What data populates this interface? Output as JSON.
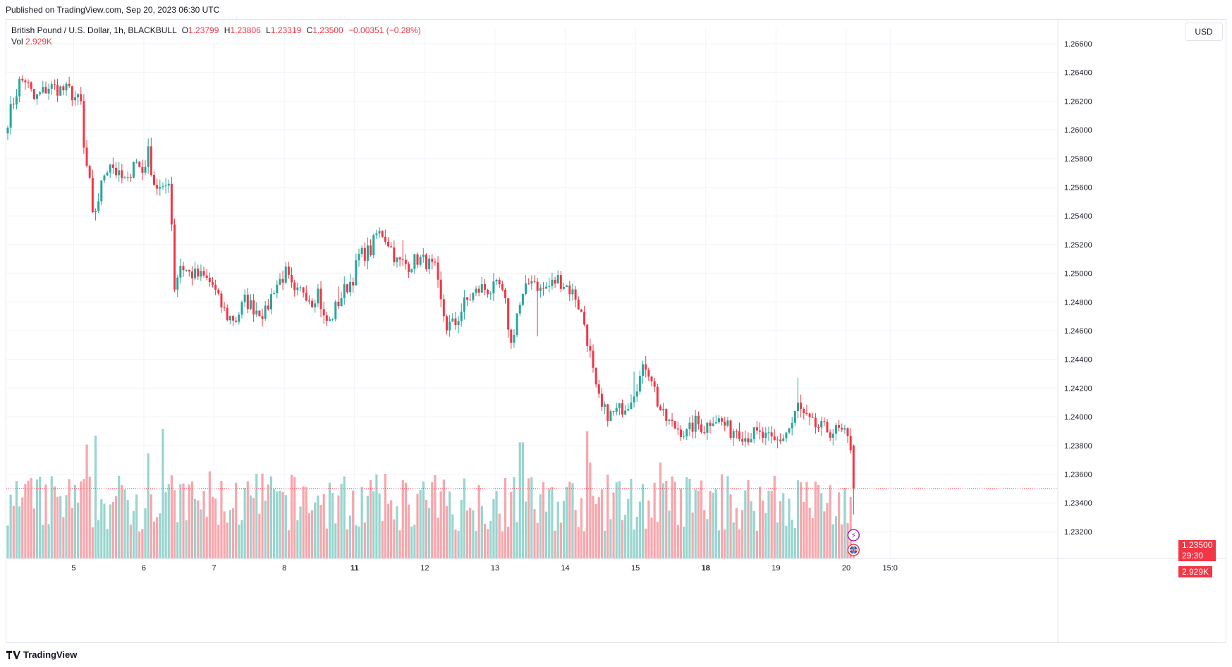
{
  "header": {
    "published": "Published on TradingView.com, Sep 20, 2023 06:30 UTC"
  },
  "legend": {
    "symbol": "British Pound / U.S. Dollar, 1h, BLACKBULL",
    "open_label": "O",
    "open": "1.23799",
    "high_label": "H",
    "high": "1.23806",
    "low_label": "L",
    "low": "1.23319",
    "close_label": "C",
    "close": "1.23500",
    "change": "−0.00351 (−0.28%)",
    "vol_label": "Vol",
    "vol": "2.929K"
  },
  "currency_button": "USD",
  "price_tag": {
    "price": "1.23500",
    "countdown": "29:30",
    "volume": "2.929K"
  },
  "footer": {
    "brand": "TradingView"
  },
  "colors": {
    "up": "#26a69a",
    "down": "#f23645",
    "vol_up": "#98d5cf",
    "vol_down": "#f7a6ac",
    "grid": "#f0f3fa"
  },
  "chart_data": {
    "type": "candlestick",
    "title": "British Pound / U.S. Dollar, 1h, BLACKBULL",
    "ylim": [
      1.2302,
      1.2672
    ],
    "y_ticks": [
      "1.26600",
      "1.26400",
      "1.26200",
      "1.26000",
      "1.25800",
      "1.25600",
      "1.25400",
      "1.25200",
      "1.25000",
      "1.24800",
      "1.24600",
      "1.24400",
      "1.24200",
      "1.24000",
      "1.23800",
      "1.23600",
      "1.23400",
      "1.23200"
    ],
    "x_ticks": [
      {
        "label": "5",
        "bold": false,
        "bar": 22.5
      },
      {
        "label": "6",
        "bold": false,
        "bar": 46.5
      },
      {
        "label": "7",
        "bold": false,
        "bar": 70.5
      },
      {
        "label": "8",
        "bold": false,
        "bar": 94.5
      },
      {
        "label": "11",
        "bold": true,
        "bar": 118.5
      },
      {
        "label": "12",
        "bold": false,
        "bar": 142.5
      },
      {
        "label": "13",
        "bold": false,
        "bar": 166.5
      },
      {
        "label": "14",
        "bold": false,
        "bar": 190.5
      },
      {
        "label": "15",
        "bold": false,
        "bar": 214.5
      },
      {
        "label": "18",
        "bold": true,
        "bar": 238.5
      },
      {
        "label": "19",
        "bold": false,
        "bar": 262.5
      },
      {
        "label": "20",
        "bold": false,
        "bar": 286.5
      },
      {
        "label": "15:0",
        "bold": false,
        "bar": 301.5
      }
    ],
    "anchors": [
      [
        0,
        1.2607
      ],
      [
        4,
        1.2633
      ],
      [
        6,
        1.2635
      ],
      [
        9,
        1.2621
      ],
      [
        14,
        1.263
      ],
      [
        21,
        1.2627
      ],
      [
        25,
        1.2618
      ],
      [
        26,
        1.2586
      ],
      [
        28,
        1.2562
      ],
      [
        29,
        1.2538
      ],
      [
        31,
        1.2552
      ],
      [
        33,
        1.257
      ],
      [
        35,
        1.2578
      ],
      [
        38,
        1.2567
      ],
      [
        41,
        1.2563
      ],
      [
        43,
        1.258
      ],
      [
        46,
        1.2571
      ],
      [
        48,
        1.2584
      ],
      [
        50,
        1.2563
      ],
      [
        53,
        1.2556
      ],
      [
        55,
        1.2566
      ],
      [
        56,
        1.2535
      ],
      [
        57,
        1.2491
      ],
      [
        59,
        1.2506
      ],
      [
        62,
        1.25
      ],
      [
        67,
        1.2497
      ],
      [
        70,
        1.2492
      ],
      [
        72,
        1.2481
      ],
      [
        75,
        1.247
      ],
      [
        78,
        1.2468
      ],
      [
        81,
        1.2481
      ],
      [
        84,
        1.2476
      ],
      [
        88,
        1.2472
      ],
      [
        91,
        1.249
      ],
      [
        95,
        1.25
      ],
      [
        98,
        1.2484
      ],
      [
        101,
        1.2489
      ],
      [
        104,
        1.2481
      ],
      [
        106,
        1.2488
      ],
      [
        108,
        1.2468
      ],
      [
        110,
        1.2466
      ],
      [
        112,
        1.2476
      ],
      [
        115,
        1.2488
      ],
      [
        118,
        1.2497
      ],
      [
        120,
        1.2512
      ],
      [
        124,
        1.2516
      ],
      [
        126,
        1.2527
      ],
      [
        128,
        1.2528
      ],
      [
        130,
        1.2522
      ],
      [
        133,
        1.2508
      ],
      [
        137,
        1.2506
      ],
      [
        140,
        1.251
      ],
      [
        143,
        1.2508
      ],
      [
        146,
        1.2502
      ],
      [
        148,
        1.2479
      ],
      [
        150,
        1.2463
      ],
      [
        153,
        1.2465
      ],
      [
        156,
        1.2479
      ],
      [
        159,
        1.2485
      ],
      [
        162,
        1.249
      ],
      [
        165,
        1.2488
      ],
      [
        168,
        1.2491
      ],
      [
        170,
        1.2478
      ],
      [
        172,
        1.245
      ],
      [
        174,
        1.2472
      ],
      [
        177,
        1.2488
      ],
      [
        179,
        1.2498
      ],
      [
        182,
        1.2488
      ],
      [
        185,
        1.2491
      ],
      [
        188,
        1.2496
      ],
      [
        191,
        1.2491
      ],
      [
        194,
        1.2484
      ],
      [
        197,
        1.2465
      ],
      [
        199,
        1.2443
      ],
      [
        201,
        1.2418
      ],
      [
        203,
        1.2405
      ],
      [
        206,
        1.2401
      ],
      [
        209,
        1.2405
      ],
      [
        212,
        1.241
      ],
      [
        215,
        1.2423
      ],
      [
        218,
        1.2436
      ],
      [
        220,
        1.2428
      ],
      [
        222,
        1.241
      ],
      [
        224,
        1.24
      ],
      [
        227,
        1.2394
      ],
      [
        229,
        1.2392
      ],
      [
        232,
        1.2388
      ],
      [
        235,
        1.2396
      ],
      [
        238,
        1.2392
      ],
      [
        241,
        1.24
      ],
      [
        244,
        1.2396
      ],
      [
        247,
        1.239
      ],
      [
        249,
        1.2392
      ],
      [
        252,
        1.2386
      ],
      [
        255,
        1.2388
      ],
      [
        258,
        1.2386
      ],
      [
        262,
        1.2382
      ],
      [
        265,
        1.2386
      ],
      [
        268,
        1.2395
      ],
      [
        270,
        1.2408
      ],
      [
        272,
        1.24
      ],
      [
        275,
        1.2394
      ],
      [
        278,
        1.2392
      ],
      [
        281,
        1.239
      ],
      [
        284,
        1.239
      ],
      [
        286,
        1.2387
      ],
      [
        288,
        1.238
      ],
      [
        289,
        1.235
      ]
    ],
    "volume_scale": [
      0,
      6000
    ],
    "last_price": 1.235,
    "last_volume": 2929,
    "x_start": "Sep 4",
    "x_end": "Sep 20 06:00",
    "interval": "1h"
  }
}
